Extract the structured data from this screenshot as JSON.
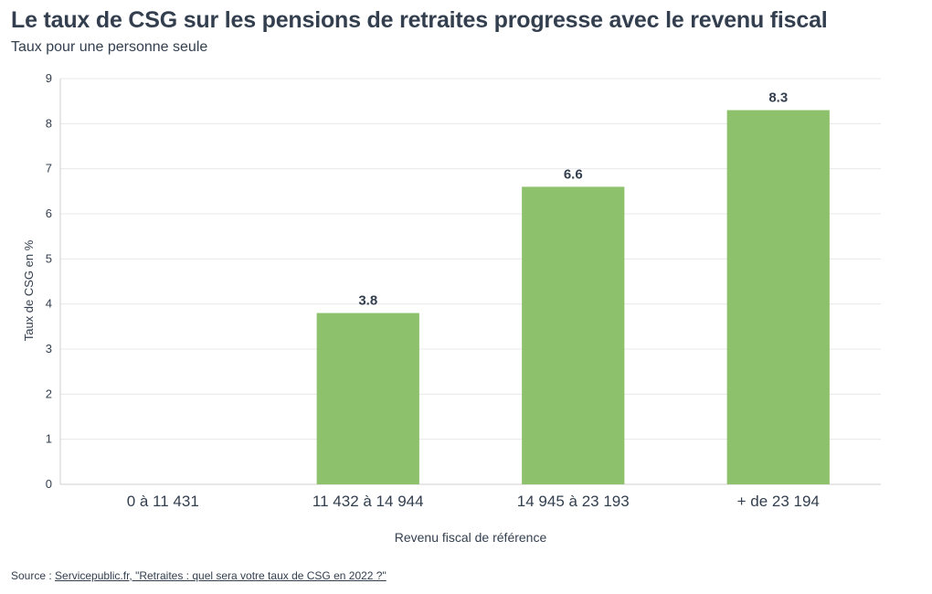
{
  "title": "Le taux de CSG sur les pensions de retraites progresse avec le revenu fiscal",
  "subtitle": "Taux pour une personne seule",
  "source": {
    "prefix": "Source : ",
    "link_text": "Servicepublic.fr, \"Retraites : quel sera votre taux de CSG en 2022 ?\""
  },
  "colors": {
    "bar": "#8ec16b",
    "text": "#333f4f",
    "grid": "#e8e8e8",
    "axis": "#cfcfcf"
  },
  "chart_data": {
    "type": "bar",
    "xlabel": "Revenu fiscal de référence",
    "ylabel": "Taux de CSG en %",
    "categories": [
      "0 à 11 431",
      "11 432 à 14 944",
      "14 945 à 23 193",
      "+ de 23 194"
    ],
    "values": [
      0,
      3.8,
      6.6,
      8.3
    ],
    "data_labels": [
      "",
      "3.8",
      "6.6",
      "8.3"
    ],
    "ylim": [
      0,
      9
    ],
    "yticks": [
      "0",
      "1",
      "2",
      "3",
      "4",
      "5",
      "6",
      "7",
      "8",
      "9"
    ],
    "grid": true,
    "legend": "none"
  }
}
